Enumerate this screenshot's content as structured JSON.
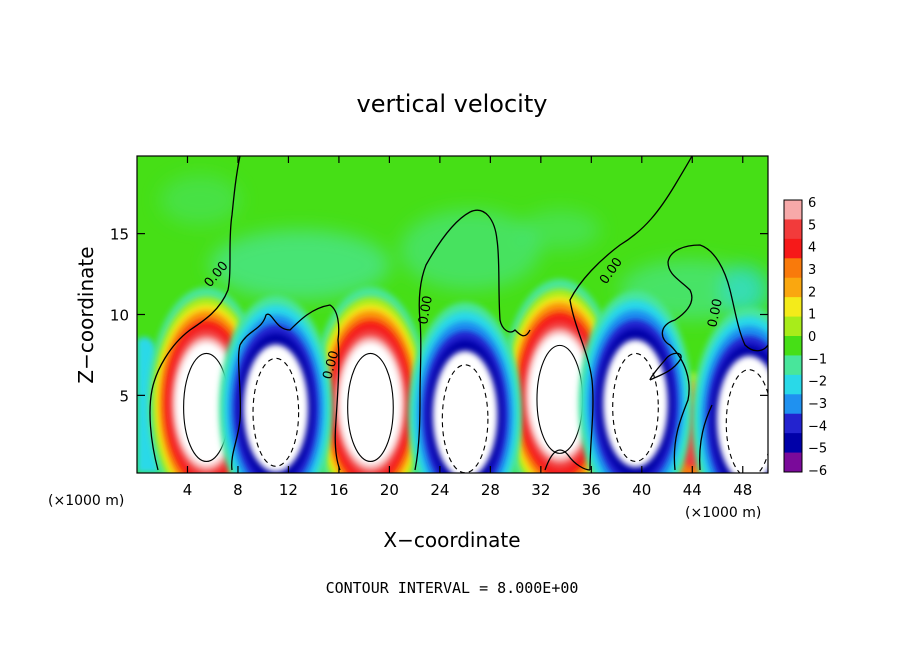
{
  "chart_data": {
    "type": "heatmap",
    "title": "vertical velocity",
    "xlabel": "X−coordinate",
    "ylabel": "Z−coordinate",
    "x_unit_left": "(×1000 m)",
    "x_unit_right": "(×1000 m)",
    "xlim": [
      0,
      50
    ],
    "ylim": [
      0.2,
      19.8
    ],
    "x_ticks": [
      4,
      8,
      12,
      16,
      20,
      24,
      28,
      32,
      36,
      40,
      44,
      48
    ],
    "y_ticks": [
      5,
      10,
      15
    ],
    "colorbar": {
      "ticks": [
        "6",
        "5",
        "4",
        "3",
        "2",
        "1",
        "0",
        "−1",
        "−2",
        "−3",
        "−4",
        "−5",
        "−6"
      ],
      "vmin": -6,
      "vmax": 6,
      "colors": [
        "#f7a9a9",
        "#f23b3b",
        "#f61919",
        "#f97a0b",
        "#faa70f",
        "#f4eb1a",
        "#a8ec1a",
        "#46df16",
        "#48e69b",
        "#29d9e8",
        "#1f91f0",
        "#2323cf",
        "#0000a8",
        "#7a0a9a"
      ]
    },
    "contour_label": "0.00",
    "footer": "CONTOUR INTERVAL = 8.000E+00",
    "cells": [
      {
        "x": 5.5,
        "z": 4.5,
        "w": 6
      },
      {
        "x": 11,
        "z": 4.2,
        "w": -6
      },
      {
        "x": 18.5,
        "z": 4.5,
        "w": 6
      },
      {
        "x": 26,
        "z": 3.8,
        "w": -6
      },
      {
        "x": 33.5,
        "z": 5.0,
        "w": 6
      },
      {
        "x": 39.5,
        "z": 4.5,
        "w": -5
      },
      {
        "x": 44,
        "z": 2.5,
        "w": 3
      },
      {
        "x": 48.5,
        "z": 3.5,
        "w": -5
      }
    ]
  }
}
